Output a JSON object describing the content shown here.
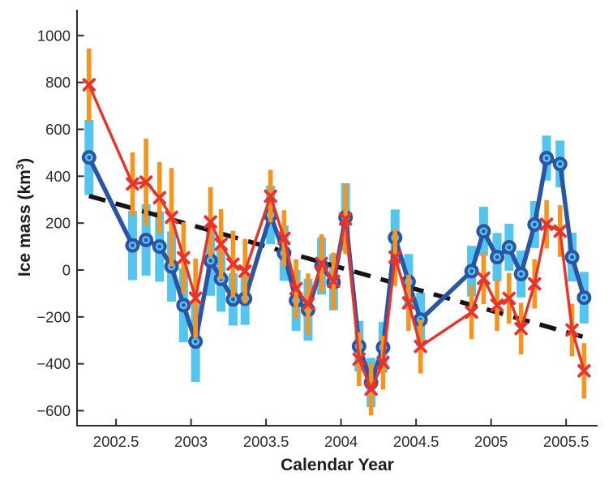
{
  "chart_data": {
    "type": "line",
    "title": "",
    "xlabel": "Calendar Year",
    "ylabel": {
      "pre": "Ice mass (km",
      "sup": "3",
      "post": ")"
    },
    "xlim": [
      2002.24,
      2005.71
    ],
    "ylim": [
      -664,
      1110
    ],
    "grid": false,
    "legend_position": "none",
    "x_ticks": [
      {
        "v": 2002.5,
        "label": "2002.5"
      },
      {
        "v": 2003,
        "label": "2003"
      },
      {
        "v": 2003.5,
        "label": "2003.5"
      },
      {
        "v": 2004,
        "label": "2004"
      },
      {
        "v": 2004.5,
        "label": "2004.5"
      },
      {
        "v": 2005,
        "label": "2005"
      },
      {
        "v": 2005.5,
        "label": "2005.5"
      }
    ],
    "y_ticks": [
      {
        "v": 1000,
        "label": "1000"
      },
      {
        "v": 800,
        "label": "800"
      },
      {
        "v": 600,
        "label": "600"
      },
      {
        "v": 400,
        "label": "400"
      },
      {
        "v": 200,
        "label": "200"
      },
      {
        "v": 0,
        "label": "0"
      },
      {
        "v": -200,
        "label": "−200"
      },
      {
        "v": -400,
        "label": "−400"
      },
      {
        "v": -600,
        "label": "−600"
      }
    ],
    "trend_line": {
      "style": "dashed",
      "color": "#141414",
      "from": {
        "x": 2002.32,
        "y": 316
      },
      "to": {
        "x": 2005.64,
        "y": -290
      }
    },
    "series": [
      {
        "id": "blue-circle-series",
        "marker": "circle",
        "line_color": "#2a55a6",
        "marker_color": "#2a55a6",
        "marker_center_color": "#54c5ef",
        "error_bar_color": "#54c5ef",
        "points": [
          [
            2002.32,
            480,
            160
          ],
          [
            2002.61,
            105,
            148
          ],
          [
            2002.7,
            128,
            152
          ],
          [
            2002.79,
            100,
            150
          ],
          [
            2002.87,
            15,
            150
          ],
          [
            2002.95,
            -150,
            158
          ],
          [
            2003.03,
            -305,
            172
          ],
          [
            2003.13,
            40,
            150
          ],
          [
            2003.2,
            -38,
            140
          ],
          [
            2003.28,
            -125,
            112
          ],
          [
            2003.36,
            -122,
            112
          ],
          [
            2003.53,
            235,
            125
          ],
          [
            2003.62,
            72,
            118
          ],
          [
            2003.7,
            -130,
            130
          ],
          [
            2003.78,
            -170,
            132
          ],
          [
            2003.87,
            17,
            122
          ],
          [
            2003.95,
            -52,
            120
          ],
          [
            2004.03,
            225,
            145
          ],
          [
            2004.12,
            -325,
            108
          ],
          [
            2004.2,
            -480,
            105
          ],
          [
            2004.28,
            -330,
            108
          ],
          [
            2004.36,
            138,
            120
          ],
          [
            2004.45,
            -50,
            118
          ],
          [
            2004.53,
            -212,
            115
          ],
          [
            2004.87,
            -5,
            108
          ],
          [
            2004.95,
            165,
            105
          ],
          [
            2005.04,
            55,
            103
          ],
          [
            2005.12,
            97,
            100
          ],
          [
            2005.2,
            -17,
            100
          ],
          [
            2005.29,
            194,
            100
          ],
          [
            2005.37,
            477,
            96
          ],
          [
            2005.46,
            452,
            100
          ],
          [
            2005.54,
            55,
            104
          ],
          [
            2005.62,
            -118,
            110
          ]
        ]
      },
      {
        "id": "red-x-series",
        "marker": "x",
        "line_color": "#e8332a",
        "marker_color": "#e8332a",
        "error_bar_color": "#f7941e",
        "points": [
          [
            2002.32,
            790,
            155
          ],
          [
            2002.61,
            367,
            135
          ],
          [
            2002.7,
            375,
            185
          ],
          [
            2002.79,
            308,
            152
          ],
          [
            2002.87,
            225,
            210
          ],
          [
            2002.95,
            52,
            152
          ],
          [
            2003.03,
            -120,
            168
          ],
          [
            2003.13,
            205,
            148
          ],
          [
            2003.2,
            110,
            150
          ],
          [
            2003.28,
            25,
            142
          ],
          [
            2003.36,
            -5,
            138
          ],
          [
            2003.53,
            315,
            112
          ],
          [
            2003.62,
            135,
            120
          ],
          [
            2003.7,
            -80,
            126
          ],
          [
            2003.78,
            -145,
            130
          ],
          [
            2003.87,
            28,
            124
          ],
          [
            2003.95,
            -48,
            122
          ],
          [
            2004.03,
            218,
            150
          ],
          [
            2004.12,
            -380,
            115
          ],
          [
            2004.2,
            -508,
            112
          ],
          [
            2004.28,
            -395,
            115
          ],
          [
            2004.36,
            55,
            120
          ],
          [
            2004.45,
            -140,
            120
          ],
          [
            2004.53,
            -326,
            115
          ],
          [
            2004.87,
            -180,
            115
          ],
          [
            2004.95,
            -35,
            110
          ],
          [
            2005.04,
            -150,
            110
          ],
          [
            2005.12,
            -121,
            108
          ],
          [
            2005.2,
            -250,
            110
          ],
          [
            2005.29,
            -59,
            105
          ],
          [
            2005.37,
            195,
            103
          ],
          [
            2005.46,
            166,
            110
          ],
          [
            2005.54,
            -256,
            112
          ],
          [
            2005.62,
            -430,
            118
          ]
        ]
      }
    ],
    "axis_color": "#2d2d2d"
  }
}
